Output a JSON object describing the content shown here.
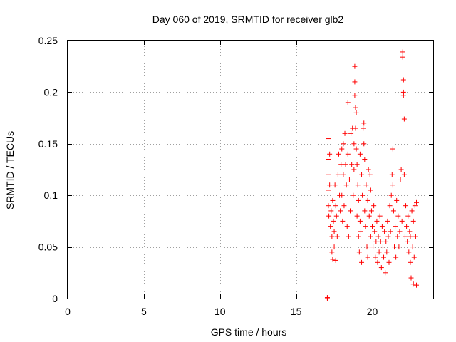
{
  "chart_data": {
    "type": "scatter",
    "title": "Day 060 of 2019, SRMTID for receiver glb2",
    "xlabel": "GPS time / hours",
    "ylabel": "SRMTID / TECUs",
    "xlim": [
      0,
      24
    ],
    "ylim": [
      0,
      0.25
    ],
    "x_ticks": [
      0,
      5,
      10,
      15,
      20
    ],
    "x_tick_labels": [
      "0",
      "5",
      "10",
      "15",
      "20"
    ],
    "y_ticks": [
      0,
      0.05,
      0.1,
      0.15,
      0.2,
      0.25
    ],
    "y_tick_labels": [
      "0",
      "0.05",
      "0.1",
      "0.15",
      "0.2",
      "0.25"
    ],
    "grid": true,
    "marker": "+",
    "series": [
      {
        "name": "SRMTID",
        "color": "#ff0000",
        "points": [
          [
            17.05,
            0.0
          ],
          [
            17.05,
            0.001
          ],
          [
            17.1,
            0.155
          ],
          [
            17.1,
            0.135
          ],
          [
            17.1,
            0.12
          ],
          [
            17.1,
            0.105
          ],
          [
            17.12,
            0.09
          ],
          [
            17.15,
            0.08
          ],
          [
            17.2,
            0.14
          ],
          [
            17.2,
            0.11
          ],
          [
            17.25,
            0.07
          ],
          [
            17.3,
            0.085
          ],
          [
            17.35,
            0.06
          ],
          [
            17.35,
            0.045
          ],
          [
            17.4,
            0.095
          ],
          [
            17.4,
            0.038
          ],
          [
            17.45,
            0.075
          ],
          [
            17.5,
            0.065
          ],
          [
            17.5,
            0.05
          ],
          [
            17.55,
            0.11
          ],
          [
            17.6,
            0.09
          ],
          [
            17.6,
            0.037
          ],
          [
            17.65,
            0.08
          ],
          [
            17.7,
            0.06
          ],
          [
            17.75,
            0.12
          ],
          [
            17.8,
            0.14
          ],
          [
            17.85,
            0.1
          ],
          [
            17.9,
            0.085
          ],
          [
            17.95,
            0.13
          ],
          [
            18.0,
            0.145
          ],
          [
            18.0,
            0.1
          ],
          [
            18.05,
            0.075
          ],
          [
            18.1,
            0.15
          ],
          [
            18.1,
            0.12
          ],
          [
            18.15,
            0.09
          ],
          [
            18.2,
            0.16
          ],
          [
            18.25,
            0.13
          ],
          [
            18.3,
            0.11
          ],
          [
            18.35,
            0.07
          ],
          [
            18.4,
            0.19
          ],
          [
            18.4,
            0.14
          ],
          [
            18.45,
            0.06
          ],
          [
            18.5,
            0.115
          ],
          [
            18.55,
            0.085
          ],
          [
            18.6,
            0.16
          ],
          [
            18.65,
            0.13
          ],
          [
            18.7,
            0.165
          ],
          [
            18.75,
            0.1
          ],
          [
            18.8,
            0.15
          ],
          [
            18.8,
            0.125
          ],
          [
            18.85,
            0.225
          ],
          [
            18.85,
            0.21
          ],
          [
            18.85,
            0.197
          ],
          [
            18.9,
            0.185
          ],
          [
            18.9,
            0.165
          ],
          [
            18.95,
            0.18
          ],
          [
            18.95,
            0.145
          ],
          [
            19.0,
            0.13
          ],
          [
            19.0,
            0.08
          ],
          [
            19.05,
            0.11
          ],
          [
            19.1,
            0.095
          ],
          [
            19.1,
            0.06
          ],
          [
            19.15,
            0.045
          ],
          [
            19.2,
            0.14
          ],
          [
            19.2,
            0.075
          ],
          [
            19.25,
            0.065
          ],
          [
            19.3,
            0.12
          ],
          [
            19.3,
            0.035
          ],
          [
            19.35,
            0.1
          ],
          [
            19.4,
            0.165
          ],
          [
            19.45,
            0.17
          ],
          [
            19.45,
            0.15
          ],
          [
            19.5,
            0.135
          ],
          [
            19.5,
            0.085
          ],
          [
            19.55,
            0.07
          ],
          [
            19.6,
            0.11
          ],
          [
            19.65,
            0.05
          ],
          [
            19.7,
            0.095
          ],
          [
            19.7,
            0.04
          ],
          [
            19.75,
            0.125
          ],
          [
            19.8,
            0.08
          ],
          [
            19.85,
            0.12
          ],
          [
            19.9,
            0.06
          ],
          [
            19.9,
            0.105
          ],
          [
            19.95,
            0.085
          ],
          [
            20.0,
            0.07
          ],
          [
            20.05,
            0.05
          ],
          [
            20.1,
            0.09
          ],
          [
            20.15,
            0.065
          ],
          [
            20.2,
            0.04
          ],
          [
            20.25,
            0.055
          ],
          [
            20.3,
            0.075
          ],
          [
            20.35,
            0.035
          ],
          [
            20.4,
            0.06
          ],
          [
            20.45,
            0.045
          ],
          [
            20.5,
            0.08
          ],
          [
            20.55,
            0.055
          ],
          [
            20.6,
            0.03
          ],
          [
            20.65,
            0.07
          ],
          [
            20.7,
            0.05
          ],
          [
            20.75,
            0.04
          ],
          [
            20.8,
            0.065
          ],
          [
            20.85,
            0.025
          ],
          [
            20.9,
            0.055
          ],
          [
            20.95,
            0.045
          ],
          [
            21.0,
            0.075
          ],
          [
            21.05,
            0.06
          ],
          [
            21.1,
            0.035
          ],
          [
            21.15,
            0.09
          ],
          [
            21.2,
            0.065
          ],
          [
            21.25,
            0.1
          ],
          [
            21.3,
            0.12
          ],
          [
            21.35,
            0.145
          ],
          [
            21.35,
            0.11
          ],
          [
            21.4,
            0.085
          ],
          [
            21.45,
            0.05
          ],
          [
            21.5,
            0.07
          ],
          [
            21.55,
            0.04
          ],
          [
            21.6,
            0.095
          ],
          [
            21.65,
            0.06
          ],
          [
            21.7,
            0.08
          ],
          [
            21.75,
            0.05
          ],
          [
            21.8,
            0.065
          ],
          [
            21.85,
            0.115
          ],
          [
            21.9,
            0.125
          ],
          [
            21.95,
            0.075
          ],
          [
            22.0,
            0.239
          ],
          [
            22.0,
            0.234
          ],
          [
            22.05,
            0.212
          ],
          [
            22.05,
            0.2
          ],
          [
            22.05,
            0.197
          ],
          [
            22.1,
            0.174
          ],
          [
            22.1,
            0.12
          ],
          [
            22.15,
            0.06
          ],
          [
            22.2,
            0.09
          ],
          [
            22.25,
            0.07
          ],
          [
            22.3,
            0.055
          ],
          [
            22.35,
            0.08
          ],
          [
            22.4,
            0.045
          ],
          [
            22.45,
            0.065
          ],
          [
            22.5,
            0.035
          ],
          [
            22.5,
            0.06
          ],
          [
            22.55,
            0.02
          ],
          [
            22.6,
            0.085
          ],
          [
            22.65,
            0.05
          ],
          [
            22.7,
            0.075
          ],
          [
            22.7,
            0.014
          ],
          [
            22.75,
            0.04
          ],
          [
            22.8,
            0.09
          ],
          [
            22.85,
            0.06
          ],
          [
            22.9,
            0.093
          ],
          [
            22.9,
            0.013
          ]
        ]
      }
    ]
  }
}
